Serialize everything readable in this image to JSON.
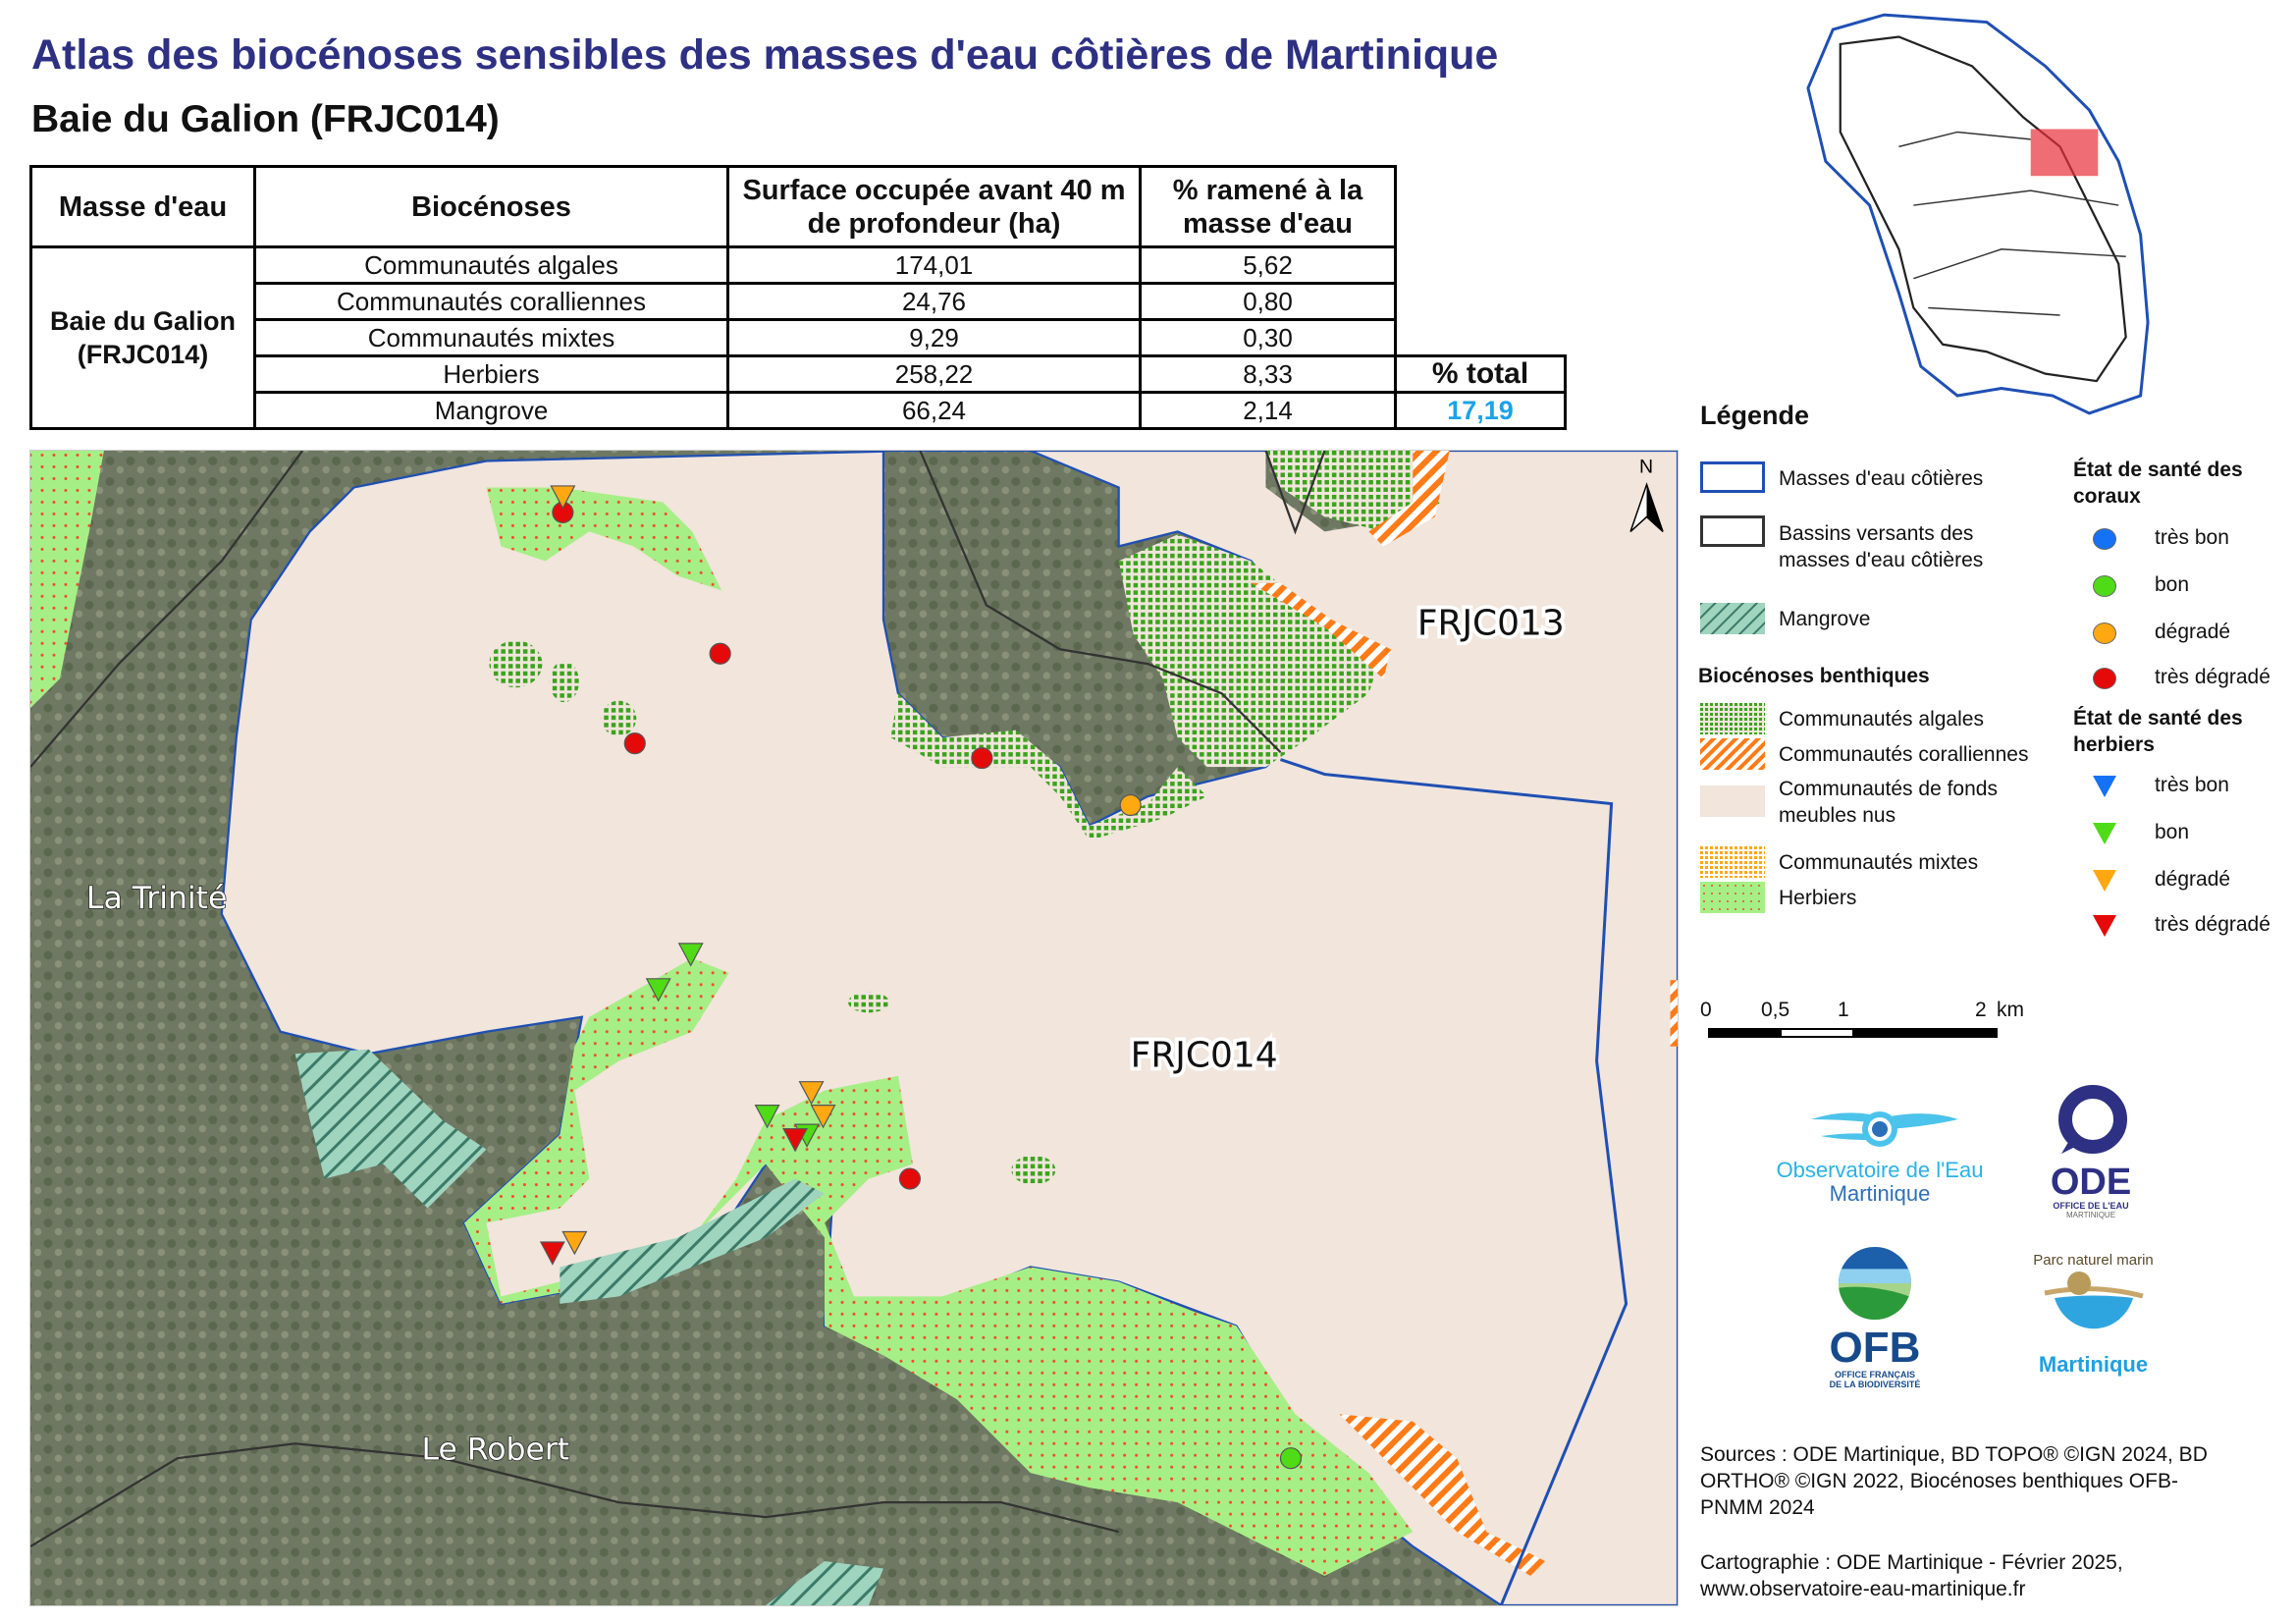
{
  "header": {
    "title": "Atlas des biocénoses sensibles des masses d'eau côtières de Martinique",
    "subtitle": "Baie du Galion (FRJC014)"
  },
  "table": {
    "columns": [
      "Masse d'eau",
      "Biocénoses",
      "Surface occupée avant 40 m de profondeur (ha)",
      "% ramené à la masse d'eau"
    ],
    "mass": "Baie du Galion (FRJC014)",
    "rows": [
      {
        "name": "Communautés algales",
        "surface": "174,01",
        "pct": "5,62"
      },
      {
        "name": "Communautés coralliennes",
        "surface": "24,76",
        "pct": "0,80"
      },
      {
        "name": "Communautés mixtes",
        "surface": "9,29",
        "pct": "0,30"
      },
      {
        "name": "Herbiers",
        "surface": "258,22",
        "pct": "8,33"
      },
      {
        "name": "Mangrove",
        "surface": "66,24",
        "pct": "2,14"
      }
    ],
    "total_label": "% total",
    "total_value": "17,19",
    "total_color": "#1aa3e8"
  },
  "map": {
    "labels": {
      "frjc013": "FRJC013",
      "frjc014": "FRJC014",
      "trinite": "La Trinité",
      "robert": "Le Robert",
      "north": "N"
    },
    "colors": {
      "sea": "#f1e5dc",
      "land": "#6e7862",
      "herbier": "#a6ef86",
      "algal": "#3aa31c",
      "coral": "#ff7b17",
      "mangrove": "#9fd4bf",
      "water_body": "#1f4fb4"
    }
  },
  "legend": {
    "title": "Légende",
    "masses": "Masses d'eau côtières",
    "bassins": "Bassins versants des masses d'eau côtières",
    "mangrove": "Mangrove",
    "bio_title": "Biocénoses benthiques",
    "algales": "Communautés algales",
    "coral": "Communautés coralliennes",
    "fonds": "Communautés de fonds meubles nus",
    "mixtes": "Communautés mixtes",
    "herbiers": "Herbiers",
    "coraux_title": "État de santé des coraux",
    "herbiers_title": "État de santé des herbiers",
    "states": [
      "très bon",
      "bon",
      "dégradé",
      "très dégradé"
    ],
    "state_colors": [
      "#1672f5",
      "#4fdb15",
      "#ffa812",
      "#e50a0a"
    ]
  },
  "scale": {
    "ticks": [
      "0",
      "0,5",
      "1",
      "2"
    ],
    "unit": "km"
  },
  "logos": {
    "oem_1": "Observatoire de l'Eau",
    "oem_2": "Martinique",
    "ode": "ODE",
    "ode_sub1": "OFFICE DE L'EAU",
    "ode_sub2": "MARTINIQUE",
    "ofb": "OFB",
    "ofb_sub1": "OFFICE FRANÇAIS",
    "ofb_sub2": "DE LA BIODIVERSITÉ",
    "pnm_top": "Parc naturel marin",
    "pnm": "Martinique"
  },
  "credits": {
    "sources": "Sources : ODE Martinique, BD TOPO® ©IGN 2024, BD ORTHO® ©IGN 2022, Biocénoses benthiques OFB-PNMM 2024",
    "carto": "Cartographie : ODE Martinique - Février 2025, www.observatoire-eau-martinique.fr"
  }
}
